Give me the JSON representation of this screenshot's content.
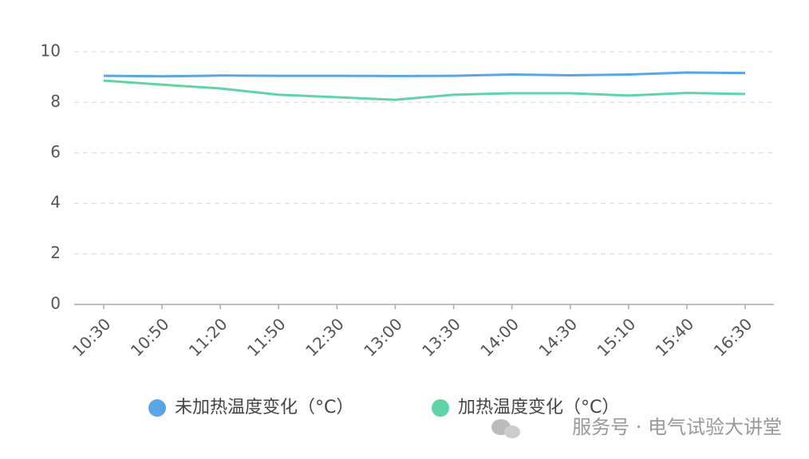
{
  "chart_data": {
    "type": "line",
    "categories": [
      "10:30",
      "10:50",
      "11:20",
      "11:50",
      "12:30",
      "13:00",
      "13:30",
      "14:00",
      "14:30",
      "15:10",
      "15:40",
      "16:30"
    ],
    "series": [
      {
        "name": "未加热温度变化（°C）",
        "color": "#5aa5e6",
        "values": [
          9.05,
          9.03,
          9.06,
          9.05,
          9.05,
          9.04,
          9.05,
          9.1,
          9.07,
          9.1,
          9.18,
          9.16
        ]
      },
      {
        "name": "加热温度变化（°C）",
        "color": "#5fd4a8",
        "values": [
          8.86,
          8.7,
          8.55,
          8.3,
          8.2,
          8.1,
          8.3,
          8.36,
          8.36,
          8.27,
          8.37,
          8.33
        ]
      }
    ],
    "ylim": [
      0,
      10
    ],
    "yticks": [
      0,
      2,
      4,
      6,
      8,
      10
    ],
    "grid": true
  },
  "watermark": "服务号 · 电气试验大讲堂"
}
